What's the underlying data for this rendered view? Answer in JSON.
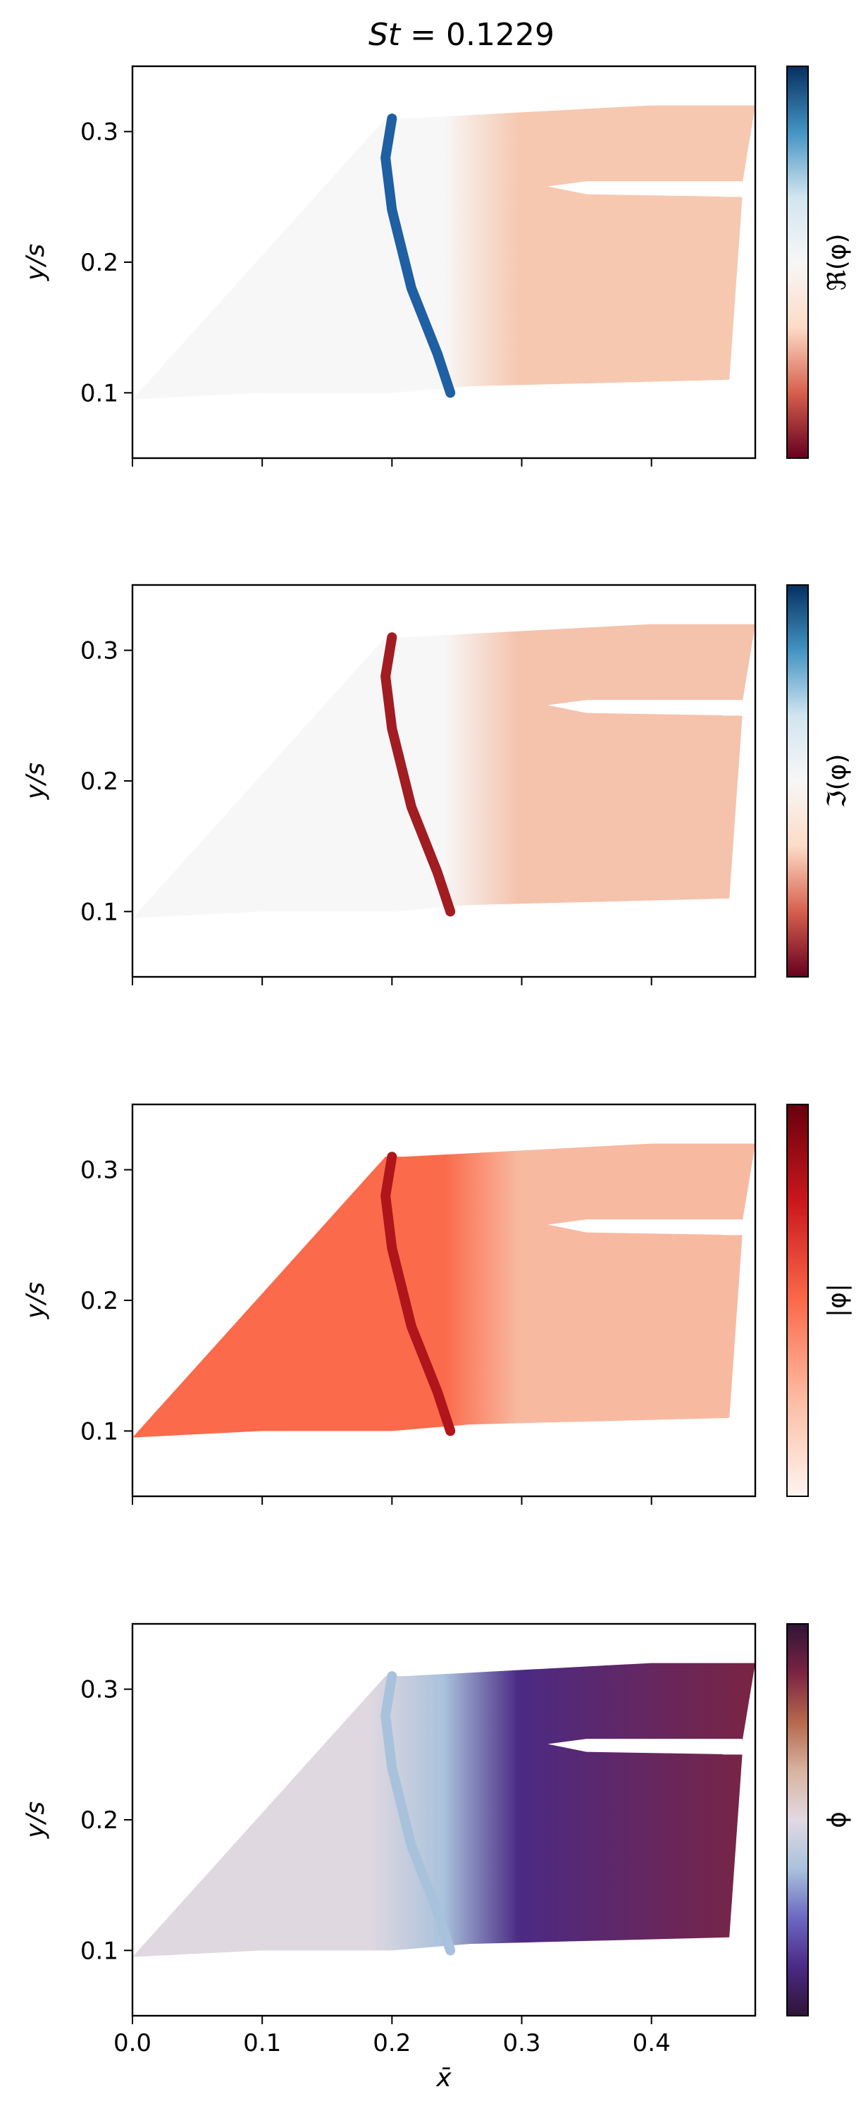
{
  "figure": {
    "title": "St = 0.1229",
    "title_prefix": "St",
    "title_suffix": " = 0.1229"
  },
  "chart_data": [
    {
      "type": "heatmap",
      "xlabel": "",
      "ylabel": "y/s",
      "xlim": [
        0.0,
        0.48
      ],
      "ylim": [
        0.05,
        0.35
      ],
      "x_ticks": [
        0.0,
        0.1,
        0.2,
        0.3,
        0.4
      ],
      "x_tick_labels": [],
      "y_ticks": [
        0.1,
        0.2,
        0.3
      ],
      "y_tick_labels": [
        "0.1",
        "0.2",
        "0.3"
      ],
      "colorbar_label": "ℜ(φ)",
      "colormap": "RdBu",
      "colors": [
        "#67001f",
        "#d6604d",
        "#fddbc7",
        "#f7f7f7",
        "#d1e5f0",
        "#4393c3",
        "#053061"
      ],
      "shock_color": "#1f5fa3",
      "field_color": "#f6c8b0"
    },
    {
      "type": "heatmap",
      "xlabel": "",
      "ylabel": "y/s",
      "xlim": [
        0.0,
        0.48
      ],
      "ylim": [
        0.05,
        0.35
      ],
      "x_ticks": [
        0.0,
        0.1,
        0.2,
        0.3,
        0.4
      ],
      "x_tick_labels": [],
      "y_ticks": [
        0.1,
        0.2,
        0.3
      ],
      "y_tick_labels": [
        "0.1",
        "0.2",
        "0.3"
      ],
      "colorbar_label": "ℑ(φ)",
      "colormap": "RdBu",
      "colors": [
        "#67001f",
        "#d6604d",
        "#fddbc7",
        "#f7f7f7",
        "#d1e5f0",
        "#4393c3",
        "#053061"
      ],
      "shock_color": "#a11d22",
      "field_color": "#f5c2ac"
    },
    {
      "type": "heatmap",
      "xlabel": "",
      "ylabel": "y/s",
      "xlim": [
        0.0,
        0.48
      ],
      "ylim": [
        0.05,
        0.35
      ],
      "x_ticks": [
        0.0,
        0.1,
        0.2,
        0.3,
        0.4
      ],
      "x_tick_labels": [],
      "y_ticks": [
        0.1,
        0.2,
        0.3
      ],
      "y_tick_labels": [
        "0.1",
        "0.2",
        "0.3"
      ],
      "colorbar_label": "|φ|",
      "colormap": "Reds",
      "colors": [
        "#fff5f0",
        "#fcbba1",
        "#fb6a4a",
        "#cb181d",
        "#67000d"
      ],
      "shock_color": "#b0151b",
      "field_color": "#f8b9a1"
    },
    {
      "type": "heatmap",
      "xlabel": "x̄",
      "ylabel": "y/s",
      "xlim": [
        0.0,
        0.48
      ],
      "ylim": [
        0.05,
        0.35
      ],
      "x_ticks": [
        0.0,
        0.1,
        0.2,
        0.3,
        0.4
      ],
      "x_tick_labels": [
        "0.0",
        "0.1",
        "0.2",
        "0.3",
        "0.4"
      ],
      "y_ticks": [
        0.1,
        0.2,
        0.3
      ],
      "y_tick_labels": [
        "0.1",
        "0.2",
        "0.3"
      ],
      "colorbar_label": "ϕ",
      "colormap": "twilight_shifted",
      "colors": [
        "#2f1436",
        "#4b2a85",
        "#6c68c2",
        "#a9c2dc",
        "#e2d9e2",
        "#d8b3a0",
        "#b5684c",
        "#7a2442",
        "#2f1436"
      ],
      "shock_color": "#a9c2dc",
      "field_color": "#e0d8e0"
    }
  ]
}
